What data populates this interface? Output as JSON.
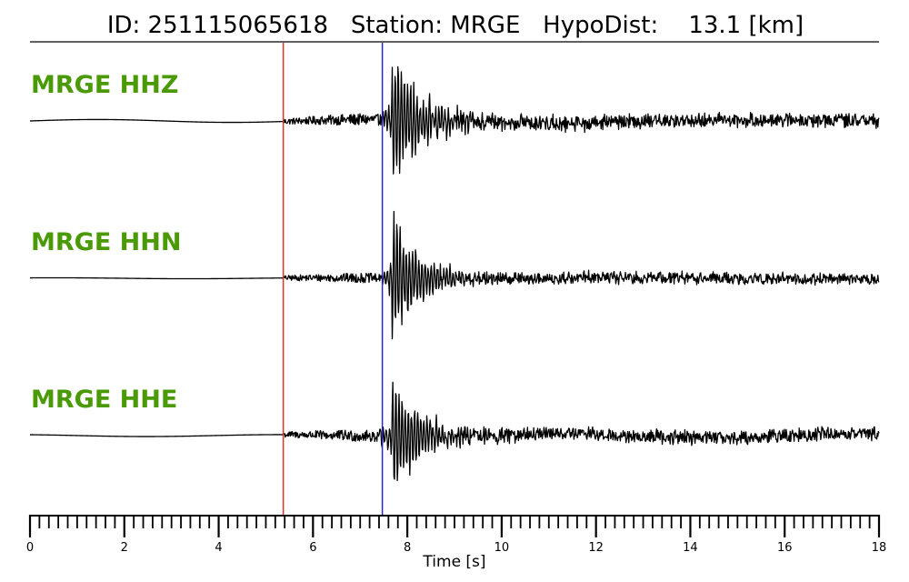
{
  "title": "ID: 251115065618   Station: MRGE   HypoDist:    13.1 [km]",
  "colors": {
    "trace": "#000000",
    "label": "#4a9a06",
    "p_pick": "#e8302c",
    "s_pick": "#2929b8"
  },
  "chart_data": {
    "type": "line",
    "title": "ID: 251115065618   Station: MRGE   HypoDist:    13.1 [km]",
    "xlabel": "Time [s]",
    "ylabel": "",
    "xlim": [
      0,
      18
    ],
    "x_major_ticks": [
      0,
      2,
      4,
      6,
      8,
      10,
      12,
      14,
      16,
      18
    ],
    "x_minor_step": 0.2,
    "tick_labels": [
      "0",
      "2",
      "4",
      "6",
      "8",
      "10",
      "12",
      "14",
      "16",
      "18"
    ],
    "grid": false,
    "markers": [
      {
        "type": "vertical-line",
        "x": 5.37,
        "color": "#e8302c"
      },
      {
        "type": "vertical-line",
        "x": 7.47,
        "color": "#2929b8"
      }
    ],
    "series": [
      {
        "name": "MRGE HHZ",
        "noise_amp": 0.06,
        "peak_amp": 1.0,
        "coda_amp": 0.09,
        "long_period_amp": 0.03
      },
      {
        "name": "MRGE HHN",
        "noise_amp": 0.05,
        "peak_amp": 1.0,
        "coda_amp": 0.05,
        "long_period_amp": 0.01
      },
      {
        "name": "MRGE HHE",
        "noise_amp": 0.06,
        "peak_amp": 1.0,
        "coda_amp": 0.06,
        "long_period_amp": 0.02
      }
    ]
  }
}
